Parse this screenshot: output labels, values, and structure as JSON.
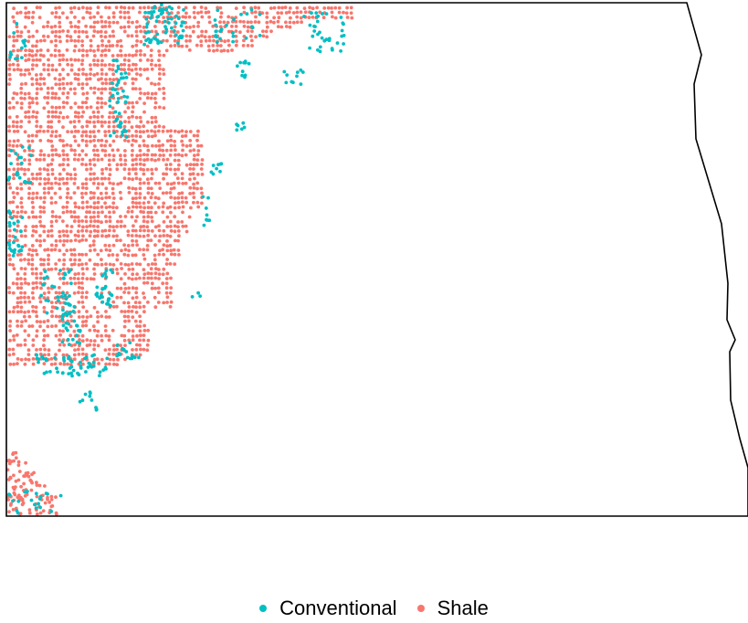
{
  "map": {
    "outline_color": "#000000",
    "background": "#ffffff",
    "series": [
      {
        "name": "Conventional",
        "color": "#00BFC4"
      },
      {
        "name": "Shale",
        "color": "#F8766D"
      }
    ]
  },
  "legend": {
    "items": [
      {
        "label": "Conventional",
        "color": "#00BFC4"
      },
      {
        "label": "Shale",
        "color": "#F8766D"
      }
    ]
  }
}
